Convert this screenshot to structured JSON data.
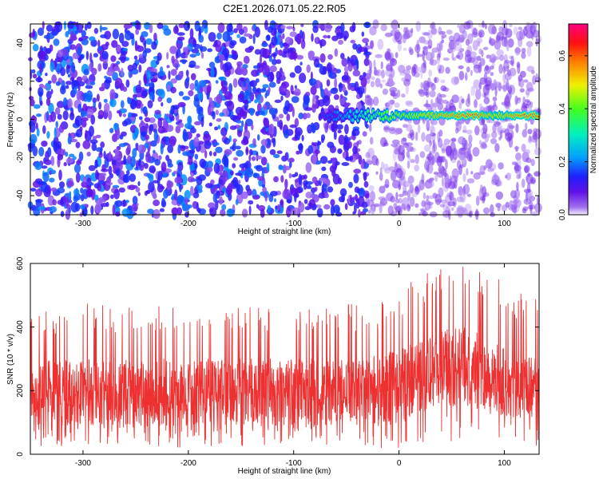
{
  "title": "C2E1.2026.071.05.22.R05",
  "chart_data": [
    {
      "type": "heatmap",
      "xlabel": "Height of straight line (km)",
      "ylabel": "Frequency (Hz)",
      "xlim": [
        -350,
        133
      ],
      "ylim": [
        -50,
        50
      ],
      "xticks": [
        -300,
        -200,
        -100,
        0,
        100
      ],
      "yticks": [
        -40,
        -20,
        0,
        20,
        40
      ],
      "colorbar": {
        "label": "Normalized spectral amplitude",
        "range": [
          0,
          0.72
        ],
        "ticks": [
          "0.0",
          "0.2",
          "0.4",
          "0.6"
        ],
        "tick_values": [
          0,
          0.2,
          0.4,
          0.6
        ]
      },
      "noise_bands": [
        {
          "x_from": -350,
          "x_to": -110,
          "mean_amplitude": 0.11
        },
        {
          "x_from": -110,
          "x_to": -30,
          "mean_amplitude": 0.09
        },
        {
          "x_from": -30,
          "x_to": 133,
          "mean_amplitude": 0.04
        }
      ],
      "signal_line": {
        "frequency_hz": 2,
        "x": [
          -75,
          -60,
          -50,
          -40,
          -30,
          -20,
          -10,
          0,
          10,
          20,
          40,
          60,
          75,
          80,
          90,
          100,
          110,
          120,
          133
        ],
        "amplitude": [
          0.15,
          0.2,
          0.25,
          0.3,
          0.35,
          0.38,
          0.42,
          0.45,
          0.45,
          0.5,
          0.55,
          0.6,
          0.62,
          0.55,
          0.5,
          0.52,
          0.58,
          0.62,
          0.6
        ]
      }
    },
    {
      "type": "line",
      "xlabel": "Height of straight line (km)",
      "ylabel": "SNR (10 * v/v)",
      "xlim": [
        -350,
        133
      ],
      "ylim": [
        0,
        600
      ],
      "xticks": [
        -300,
        -200,
        -100,
        0,
        100
      ],
      "yticks": [
        0,
        200,
        400,
        600
      ],
      "color": "#ee3030",
      "envelope": {
        "x": [
          -350,
          -300,
          -250,
          -200,
          -150,
          -100,
          -50,
          -20,
          0,
          20,
          40,
          60,
          80,
          100,
          120,
          133
        ],
        "low": [
          20,
          20,
          20,
          20,
          20,
          20,
          20,
          20,
          20,
          30,
          40,
          40,
          30,
          30,
          25,
          25
        ],
        "typical_low": [
          90,
          90,
          90,
          90,
          90,
          90,
          90,
          95,
          110,
          130,
          150,
          150,
          140,
          120,
          110,
          100
        ],
        "typical_high": [
          300,
          300,
          300,
          300,
          300,
          300,
          300,
          310,
          330,
          360,
          390,
          400,
          380,
          340,
          310,
          300
        ],
        "high": [
          440,
          450,
          450,
          450,
          440,
          450,
          450,
          460,
          500,
          540,
          570,
          580,
          560,
          520,
          480,
          460
        ]
      }
    }
  ]
}
